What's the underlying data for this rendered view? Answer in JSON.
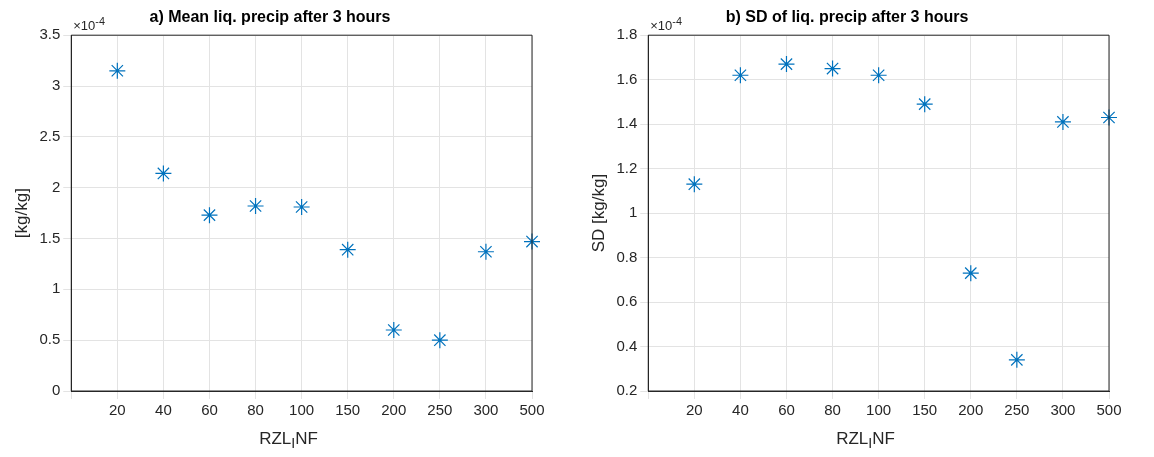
{
  "chart_data": [
    {
      "type": "scatter",
      "title": "a) Mean liq. precip after 3 hours",
      "xlabel": "RZL$_{I}$NF",
      "ylabel": "[kg/kg]",
      "annotations": [
        "×10$^{-4}$"
      ],
      "categories": [
        null,
        "20",
        "40",
        "60",
        "80",
        "100",
        "150",
        "200",
        "250",
        "300",
        "500"
      ],
      "series": [
        {
          "color": "#0072bd",
          "values": [
            null,
            3.15,
            2.14,
            1.73,
            1.82,
            1.81,
            1.39,
            0.6,
            0.5,
            1.37,
            1.47
          ]
        }
      ],
      "ylim": [
        0,
        3.5
      ],
      "yticks": [
        0,
        0.5,
        1,
        1.5,
        2,
        2.5,
        3,
        3.5
      ],
      "grid": true,
      "marker": "cross"
    },
    {
      "type": "scatter",
      "title": "b) SD of liq. precip after 3 hours",
      "xlabel": "RZL$_{I}$NF",
      "ylabel": "SD [kg/kg]",
      "annotations": [
        "×10$^{-4}$"
      ],
      "categories": [
        null,
        "20",
        "40",
        "60",
        "80",
        "100",
        "150",
        "200",
        "250",
        "300",
        "500"
      ],
      "series": [
        {
          "color": "#0072bd",
          "values": [
            null,
            1.13,
            1.62,
            1.67,
            1.65,
            1.62,
            1.49,
            0.73,
            0.34,
            1.41,
            1.43
          ]
        }
      ],
      "ylim": [
        0.2,
        1.8
      ],
      "yticks": [
        0.2,
        0.4,
        0.6,
        0.8,
        1,
        1.2,
        1.4,
        1.6,
        1.8
      ],
      "grid": true,
      "marker": "cross"
    }
  ]
}
